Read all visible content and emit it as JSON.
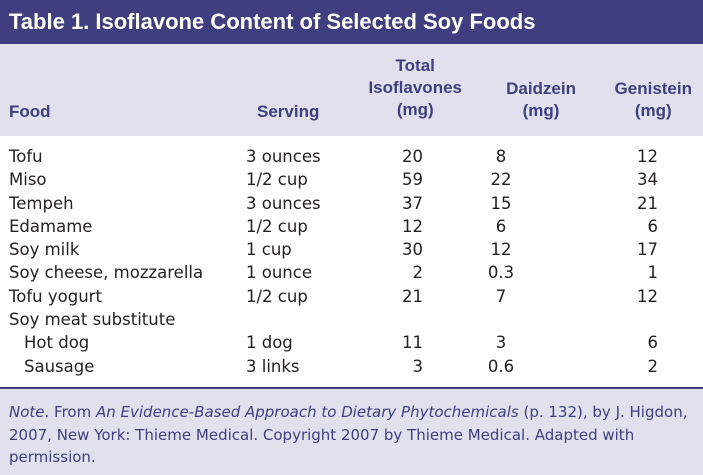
{
  "title": "Table 1. Isoflavone Content of Selected Soy Foods",
  "headers": {
    "food": "Food",
    "serving": "Serving",
    "total_line1": "Total",
    "total_line2": "Isoflavones",
    "total_line3": "(mg)",
    "daidzein_line1": "Daidzein",
    "daidzein_line2": "(mg)",
    "genistein_line1": "Genistein",
    "genistein_line2": "(mg)"
  },
  "rows": [
    {
      "food": "Tofu",
      "serving": "3 ounces",
      "total": "20",
      "daidzein": "8",
      "genistein": "12"
    },
    {
      "food": "Miso",
      "serving": "1/2 cup",
      "total": "59",
      "daidzein": "22",
      "genistein": "34"
    },
    {
      "food": "Tempeh",
      "serving": "3 ounces",
      "total": "37",
      "daidzein": "15",
      "genistein": "21"
    },
    {
      "food": "Edamame",
      "serving": "1/2 cup",
      "total": "12",
      "daidzein": "6",
      "genistein": "6"
    },
    {
      "food": "Soy milk",
      "serving": "1 cup",
      "total": "30",
      "daidzein": "12",
      "genistein": "17"
    },
    {
      "food": "Soy cheese, mozzarella",
      "serving": "1 ounce",
      "total": "2",
      "daidzein": "0.3",
      "genistein": "1"
    },
    {
      "food": "Tofu yogurt",
      "serving": "1/2 cup",
      "total": "21",
      "daidzein": "7",
      "genistein": "12"
    },
    {
      "food": "Soy meat substitute",
      "serving": "",
      "total": "",
      "daidzein": "",
      "genistein": ""
    },
    {
      "food": "Hot dog",
      "serving": "1 dog",
      "total": "11",
      "daidzein": "3",
      "genistein": "6",
      "indent": true
    },
    {
      "food": "Sausage",
      "serving": "3 links",
      "total": "3",
      "daidzein": "0.6",
      "genistein": "2",
      "indent": true
    }
  ],
  "note": {
    "label": "Note",
    "text1": ". From ",
    "book_title": "An Evidence-Based Approach to Dietary Phytochemicals",
    "text2": " (p. 132), by J. Higdon, 2007, New York: Thieme Medical. Copyright 2007 by Thieme Medical. Adapted with permission."
  },
  "colors": {
    "title_bg": "#3f3f7f",
    "band_bg": "#e2e0ed",
    "header_text": "#3f3f7f",
    "body_text": "#231f20"
  }
}
